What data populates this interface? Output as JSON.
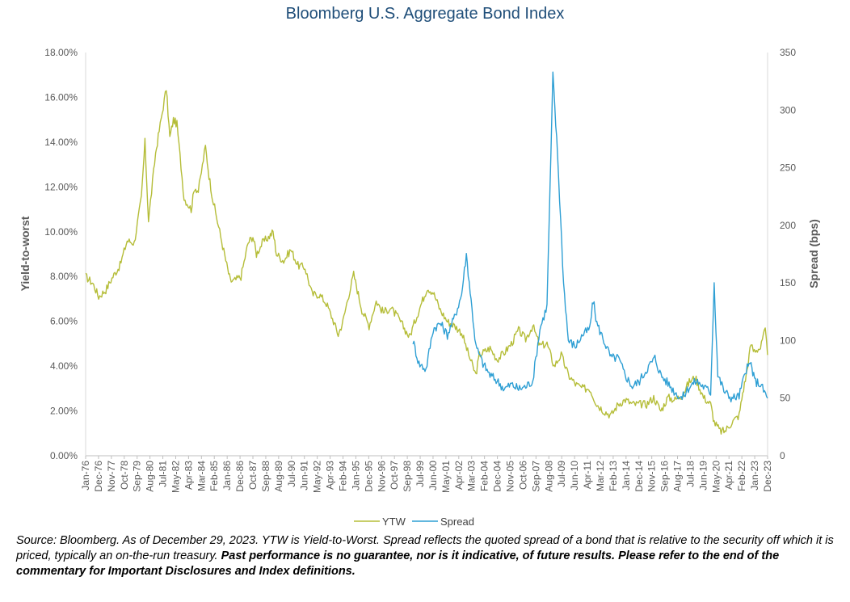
{
  "chart_data": {
    "type": "line",
    "title": "Bloomberg U.S. Aggregate Bond Index",
    "ylabel": "Yield-to-worst",
    "y2label": "Spread (bps)",
    "ylim": [
      0,
      18
    ],
    "y2lim": [
      0,
      350
    ],
    "yticks": [
      "0.00%",
      "2.00%",
      "4.00%",
      "6.00%",
      "8.00%",
      "10.00%",
      "12.00%",
      "14.00%",
      "16.00%",
      "18.00%"
    ],
    "y2ticks": [
      "0",
      "50",
      "100",
      "150",
      "200",
      "250",
      "300",
      "350"
    ],
    "xlim": [
      "Jan-76",
      "Dec-23"
    ],
    "xticks": [
      "Jan-76",
      "Dec-76",
      "Nov-77",
      "Oct-78",
      "Sep-79",
      "Aug-80",
      "Jul-81",
      "May-82",
      "Apr-83",
      "Mar-84",
      "Feb-85",
      "Jan-86",
      "Dec-86",
      "Oct-87",
      "Sep-88",
      "Aug-89",
      "Jul-90",
      "Jun-91",
      "May-92",
      "Apr-93",
      "Feb-94",
      "Jan-95",
      "Dec-95",
      "Nov-96",
      "Oct-97",
      "Sep-98",
      "Jul-99",
      "Jun-00",
      "May-01",
      "Apr-02",
      "Mar-03",
      "Feb-04",
      "Dec-04",
      "Nov-05",
      "Oct-06",
      "Sep-07",
      "Aug-08",
      "Jul-09",
      "Jun-10",
      "Apr-11",
      "Mar-12",
      "Feb-13",
      "Jan-14",
      "Dec-14",
      "Nov-15",
      "Sep-16",
      "Aug-17",
      "Jul-18",
      "Jun-19",
      "May-20",
      "Apr-21",
      "Feb-22",
      "Jan-23",
      "Dec-23"
    ],
    "legend_position": "bottom",
    "series": [
      {
        "name": "YTW",
        "axis": "left",
        "color": "#b5bd38",
        "points": [
          [
            "Jan-76",
            8.0
          ],
          [
            "Jul-76",
            7.7
          ],
          [
            "Dec-76",
            7.1
          ],
          [
            "Jun-77",
            7.4
          ],
          [
            "Dec-77",
            8.0
          ],
          [
            "Jun-78",
            8.5
          ],
          [
            "Dec-78",
            9.6
          ],
          [
            "Jun-79",
            9.5
          ],
          [
            "Dec-79",
            11.5
          ],
          [
            "Mar-80",
            14.0
          ],
          [
            "Jun-80",
            10.5
          ],
          [
            "Dec-80",
            13.5
          ],
          [
            "Mar-81",
            14.5
          ],
          [
            "Sep-81",
            16.4
          ],
          [
            "Dec-81",
            14.2
          ],
          [
            "Mar-82",
            15.0
          ],
          [
            "Jun-82",
            14.8
          ],
          [
            "Dec-82",
            11.5
          ],
          [
            "Jun-83",
            11.0
          ],
          [
            "Sep-83",
            12.0
          ],
          [
            "Dec-83",
            11.8
          ],
          [
            "Jun-84",
            13.8
          ],
          [
            "Sep-84",
            12.5
          ],
          [
            "Dec-84",
            11.5
          ],
          [
            "Jun-85",
            10.0
          ],
          [
            "Dec-85",
            8.5
          ],
          [
            "Mar-86",
            7.8
          ],
          [
            "Jun-86",
            7.8
          ],
          [
            "Dec-86",
            8.0
          ],
          [
            "Jun-87",
            9.5
          ],
          [
            "Oct-87",
            9.8
          ],
          [
            "Jan-88",
            9.0
          ],
          [
            "Jun-88",
            9.5
          ],
          [
            "Dec-88",
            9.8
          ],
          [
            "Mar-89",
            10.0
          ],
          [
            "Jun-89",
            9.0
          ],
          [
            "Dec-89",
            8.7
          ],
          [
            "Jun-90",
            9.2
          ],
          [
            "Dec-90",
            8.5
          ],
          [
            "Jun-91",
            8.4
          ],
          [
            "Dec-91",
            7.2
          ],
          [
            "Jun-92",
            7.2
          ],
          [
            "Dec-92",
            6.8
          ],
          [
            "Jun-93",
            6.0
          ],
          [
            "Oct-93",
            5.4
          ],
          [
            "Feb-94",
            6.0
          ],
          [
            "Jun-94",
            7.0
          ],
          [
            "Nov-94",
            8.1
          ],
          [
            "Jun-95",
            6.5
          ],
          [
            "Dec-95",
            5.8
          ],
          [
            "Jun-96",
            6.9
          ],
          [
            "Dec-96",
            6.4
          ],
          [
            "Jun-97",
            6.6
          ],
          [
            "Dec-97",
            6.2
          ],
          [
            "Oct-98",
            5.3
          ],
          [
            "Jun-99",
            6.5
          ],
          [
            "Jan-00",
            7.5
          ],
          [
            "Jun-00",
            7.3
          ],
          [
            "Dec-00",
            6.5
          ],
          [
            "Jun-01",
            6.0
          ],
          [
            "Dec-01",
            5.8
          ],
          [
            "Jun-02",
            5.5
          ],
          [
            "Dec-02",
            4.5
          ],
          [
            "Jun-03",
            3.6
          ],
          [
            "Sep-03",
            4.5
          ],
          [
            "Jun-04",
            4.8
          ],
          [
            "Dec-04",
            4.3
          ],
          [
            "Jun-05",
            4.6
          ],
          [
            "Dec-05",
            5.0
          ],
          [
            "Jun-06",
            5.6
          ],
          [
            "Dec-06",
            5.2
          ],
          [
            "Jun-07",
            5.8
          ],
          [
            "Dec-07",
            4.9
          ],
          [
            "Jun-08",
            5.0
          ],
          [
            "Dec-08",
            4.0
          ],
          [
            "Jun-09",
            4.5
          ],
          [
            "Dec-09",
            3.6
          ],
          [
            "Jun-10",
            3.2
          ],
          [
            "Dec-10",
            3.0
          ],
          [
            "Jun-11",
            3.0
          ],
          [
            "Dec-11",
            2.3
          ],
          [
            "Jun-12",
            2.0
          ],
          [
            "Dec-12",
            1.8
          ],
          [
            "Jun-13",
            2.3
          ],
          [
            "Dec-13",
            2.5
          ],
          [
            "Jun-14",
            2.3
          ],
          [
            "Dec-14",
            2.3
          ],
          [
            "Jun-15",
            2.3
          ],
          [
            "Dec-15",
            2.6
          ],
          [
            "Jun-16",
            2.0
          ],
          [
            "Dec-16",
            2.6
          ],
          [
            "Jun-17",
            2.5
          ],
          [
            "Dec-17",
            2.7
          ],
          [
            "Jun-18",
            3.3
          ],
          [
            "Nov-18",
            3.5
          ],
          [
            "Jun-19",
            2.6
          ],
          [
            "Dec-19",
            2.3
          ],
          [
            "Mar-20",
            1.5
          ],
          [
            "Aug-20",
            1.1
          ],
          [
            "Dec-20",
            1.1
          ],
          [
            "Jun-21",
            1.5
          ],
          [
            "Dec-21",
            1.8
          ],
          [
            "Mar-22",
            2.8
          ],
          [
            "Jun-22",
            3.6
          ],
          [
            "Oct-22",
            5.0
          ],
          [
            "Dec-22",
            4.7
          ],
          [
            "Jun-23",
            4.8
          ],
          [
            "Oct-23",
            5.6
          ],
          [
            "Dec-23",
            4.5
          ]
        ]
      },
      {
        "name": "Spread",
        "axis": "right",
        "color": "#2e9fd4",
        "points": [
          [
            "Jan-99",
            100
          ],
          [
            "Jun-99",
            80
          ],
          [
            "Dec-99",
            75
          ],
          [
            "Jun-00",
            110
          ],
          [
            "Dec-00",
            115
          ],
          [
            "Jun-01",
            105
          ],
          [
            "Dec-01",
            120
          ],
          [
            "Jun-02",
            140
          ],
          [
            "Oct-02",
            175
          ],
          [
            "Jun-03",
            95
          ],
          [
            "Dec-03",
            80
          ],
          [
            "Jun-04",
            70
          ],
          [
            "Dec-04",
            65
          ],
          [
            "Jun-05",
            58
          ],
          [
            "Dec-05",
            62
          ],
          [
            "Jun-06",
            58
          ],
          [
            "Dec-06",
            60
          ],
          [
            "Jun-07",
            65
          ],
          [
            "Dec-07",
            110
          ],
          [
            "Jun-08",
            130
          ],
          [
            "Nov-08",
            330
          ],
          [
            "Mar-09",
            260
          ],
          [
            "Aug-09",
            150
          ],
          [
            "Dec-09",
            100
          ],
          [
            "Jun-10",
            95
          ],
          [
            "Dec-10",
            105
          ],
          [
            "Jun-11",
            110
          ],
          [
            "Sep-11",
            135
          ],
          [
            "Dec-11",
            115
          ],
          [
            "Jun-12",
            100
          ],
          [
            "Dec-12",
            85
          ],
          [
            "Jun-13",
            85
          ],
          [
            "Dec-13",
            70
          ],
          [
            "Jun-14",
            60
          ],
          [
            "Dec-14",
            65
          ],
          [
            "Jun-15",
            75
          ],
          [
            "Jan-16",
            85
          ],
          [
            "Jun-16",
            70
          ],
          [
            "Dec-16",
            63
          ],
          [
            "Jun-17",
            55
          ],
          [
            "Dec-17",
            50
          ],
          [
            "Jun-18",
            60
          ],
          [
            "Dec-18",
            65
          ],
          [
            "Jun-19",
            60
          ],
          [
            "Dec-19",
            55
          ],
          [
            "Mar-20",
            150
          ],
          [
            "Jun-20",
            70
          ],
          [
            "Dec-20",
            55
          ],
          [
            "Jun-21",
            50
          ],
          [
            "Dec-21",
            52
          ],
          [
            "Jun-22",
            75
          ],
          [
            "Oct-22",
            80
          ],
          [
            "Jan-23",
            65
          ],
          [
            "Jun-23",
            62
          ],
          [
            "Dec-23",
            50
          ]
        ]
      }
    ]
  },
  "source_note": {
    "italic": "Source: Bloomberg. As of December 29, 2023. YTW is Yield-to-Worst. Spread reflects the quoted spread of a bond that is relative to the security off which it is priced, typically an on-the-run treasury.",
    "bold": "Past performance is no guarantee, nor is it indicative, of future results. Please refer to the end of the commentary for Important Disclosures and Index definitions."
  }
}
